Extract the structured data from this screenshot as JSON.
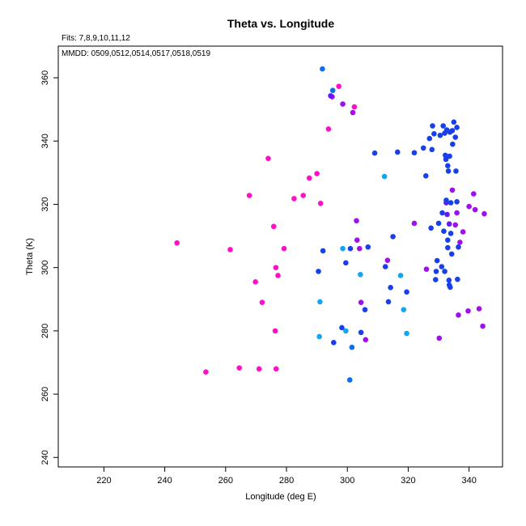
{
  "chart_data": {
    "type": "scatter",
    "title": "Theta vs. Longitude",
    "fits_note": "Fits: 7,8,9,10,11,12",
    "mmdd_note": "MMDD: 0509,0512,0514,0517,0518,0519",
    "xlabel": "Longitude (deg E)",
    "ylabel": "Theta (K)",
    "xlim": [
      205,
      351
    ],
    "ylim": [
      237,
      370
    ],
    "xticks": [
      220,
      240,
      260,
      280,
      300,
      320,
      340
    ],
    "yticks": [
      240,
      260,
      280,
      300,
      320,
      340,
      360
    ],
    "grid": false,
    "colors": {
      "magenta": "#ff10c8",
      "purple": "#a010ea",
      "violet": "#6818f0",
      "blue": "#1840ea",
      "azure": "#0870f0",
      "cyan": "#12a6f2"
    },
    "series": [
      {
        "color": "magenta",
        "points": [
          [
            244,
            307.8
          ],
          [
            253.5,
            267
          ],
          [
            261.5,
            305.7
          ],
          [
            264.5,
            268.3
          ],
          [
            267.8,
            322.8
          ],
          [
            269.8,
            295.5
          ],
          [
            271,
            268
          ],
          [
            272,
            289
          ],
          [
            274,
            334.5
          ],
          [
            275.8,
            313
          ],
          [
            276.3,
            280
          ],
          [
            276.5,
            300
          ],
          [
            276.6,
            268
          ],
          [
            277.2,
            297.5
          ],
          [
            279.2,
            306
          ],
          [
            282.5,
            321.8
          ],
          [
            285.5,
            322.8
          ],
          [
            287.5,
            328.3
          ],
          [
            290,
            329.7
          ],
          [
            291.2,
            320.3
          ],
          [
            293.8,
            343.8
          ],
          [
            297.2,
            357.3
          ],
          [
            302.3,
            350.8
          ]
        ]
      },
      {
        "color": "purple",
        "points": [
          [
            295,
            354
          ],
          [
            298.5,
            351.7
          ],
          [
            301.8,
            349
          ],
          [
            303,
            314.8
          ],
          [
            303.2,
            308.7
          ],
          [
            304,
            306
          ],
          [
            304.5,
            289
          ],
          [
            306,
            277.2
          ],
          [
            313.2,
            302.3
          ],
          [
            322,
            314
          ],
          [
            326,
            299.5
          ],
          [
            330.2,
            277.7
          ],
          [
            334.5,
            324.5
          ],
          [
            335.5,
            313.5
          ],
          [
            336,
            317.3
          ],
          [
            336.5,
            285
          ],
          [
            337,
            308
          ],
          [
            338,
            311.3
          ],
          [
            339.7,
            286.3
          ],
          [
            340,
            319.3
          ],
          [
            341.5,
            323.3
          ],
          [
            342,
            318.3
          ],
          [
            343.3,
            287
          ],
          [
            344.5,
            281.5
          ],
          [
            345,
            317
          ]
        ]
      },
      {
        "color": "violet",
        "points": [
          [
            294.5,
            354.3
          ],
          [
            332.8,
            316.8
          ],
          [
            333.5,
            313.8
          ],
          [
            332.5,
            320.5
          ]
        ]
      },
      {
        "color": "blue",
        "points": [
          [
            290.5,
            298.8
          ],
          [
            292,
            305.3
          ],
          [
            295.5,
            276.3
          ],
          [
            298.2,
            281
          ],
          [
            299.5,
            301.5
          ],
          [
            301,
            306
          ],
          [
            304.5,
            279.5
          ],
          [
            305.8,
            286.7
          ],
          [
            306.8,
            306.5
          ],
          [
            309,
            336.2
          ],
          [
            312.5,
            300.3
          ],
          [
            313.5,
            289.2
          ],
          [
            314.2,
            293.7
          ],
          [
            315,
            309.8
          ],
          [
            316.5,
            336.5
          ],
          [
            319.5,
            292.3
          ],
          [
            322,
            336.3
          ],
          [
            325,
            337.8
          ],
          [
            325.8,
            329
          ],
          [
            327,
            340.8
          ],
          [
            327.5,
            312.5
          ],
          [
            327.8,
            337.3
          ],
          [
            328,
            344.8
          ],
          [
            328.5,
            342.3
          ],
          [
            329,
            296.2
          ],
          [
            329.2,
            298.8
          ],
          [
            329.5,
            302.2
          ],
          [
            330,
            314
          ],
          [
            330.5,
            341.8
          ],
          [
            331,
            300.3
          ],
          [
            331.2,
            317.3
          ],
          [
            331.5,
            344.8
          ],
          [
            331.7,
            311.5
          ],
          [
            332,
            342.5
          ],
          [
            332,
            298.8
          ],
          [
            332.2,
            335.5
          ],
          [
            332.4,
            334.2
          ],
          [
            332.5,
            321.3
          ],
          [
            332.7,
            343.5
          ],
          [
            333,
            308.7
          ],
          [
            333,
            306.3
          ],
          [
            333,
            332.2
          ],
          [
            333.2,
            330.5
          ],
          [
            333.4,
            296
          ],
          [
            333.5,
            294.5
          ],
          [
            333.6,
            335.2
          ],
          [
            333.7,
            342.8
          ],
          [
            333.8,
            293.8
          ],
          [
            334,
            310.8
          ],
          [
            334,
            320.5
          ],
          [
            334.3,
            304.3
          ],
          [
            334.5,
            343.3
          ],
          [
            334.6,
            339
          ],
          [
            335,
            346
          ],
          [
            335.5,
            341.2
          ],
          [
            335.7,
            330.5
          ],
          [
            336,
            344.3
          ],
          [
            336,
            320.8
          ],
          [
            336.2,
            296.3
          ],
          [
            336.5,
            306.5
          ]
        ]
      },
      {
        "color": "azure",
        "points": [
          [
            291.8,
            362.8
          ],
          [
            295.2,
            356
          ],
          [
            300.8,
            264.5
          ],
          [
            301.5,
            274.8
          ]
        ]
      },
      {
        "color": "cyan",
        "points": [
          [
            290.8,
            278.2
          ],
          [
            291,
            289.2
          ],
          [
            298.5,
            306
          ],
          [
            299.5,
            280
          ],
          [
            304.3,
            297.8
          ],
          [
            312.2,
            328.8
          ],
          [
            317.5,
            297.5
          ],
          [
            318.5,
            286.7
          ],
          [
            319.5,
            279.2
          ]
        ]
      }
    ]
  }
}
